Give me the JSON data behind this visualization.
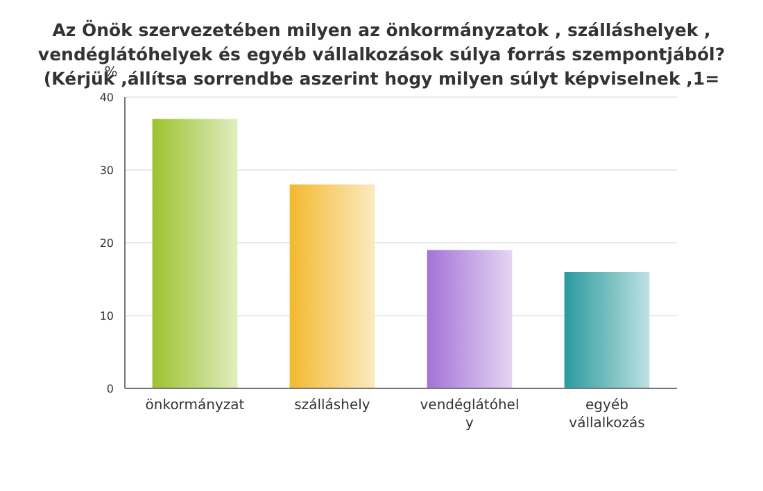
{
  "chart_data": {
    "type": "bar",
    "title": "Az Önök szervezetében milyen az önkormányzatok , szálláshelyek ,\nvendéglátóhelyek és egyéb vállalkozások súlya forrás szempontjából?\n(Kérjük ,állítsa sorrendbe aszerint hogy milyen súlyt képviselnek ,1=",
    "ylabel": "%",
    "categories": [
      "önkormányzat",
      "szálláshely",
      "vendéglátóhely",
      "egyéb vállalkozás"
    ],
    "values": [
      37,
      28,
      19,
      16
    ],
    "colors": [
      "#9bc22e",
      "#f3b92e",
      "#a473d8",
      "#2a9a9e"
    ],
    "ylim": [
      0,
      40
    ],
    "yticks": [
      0,
      10,
      20,
      30,
      40
    ],
    "grid": "y"
  }
}
